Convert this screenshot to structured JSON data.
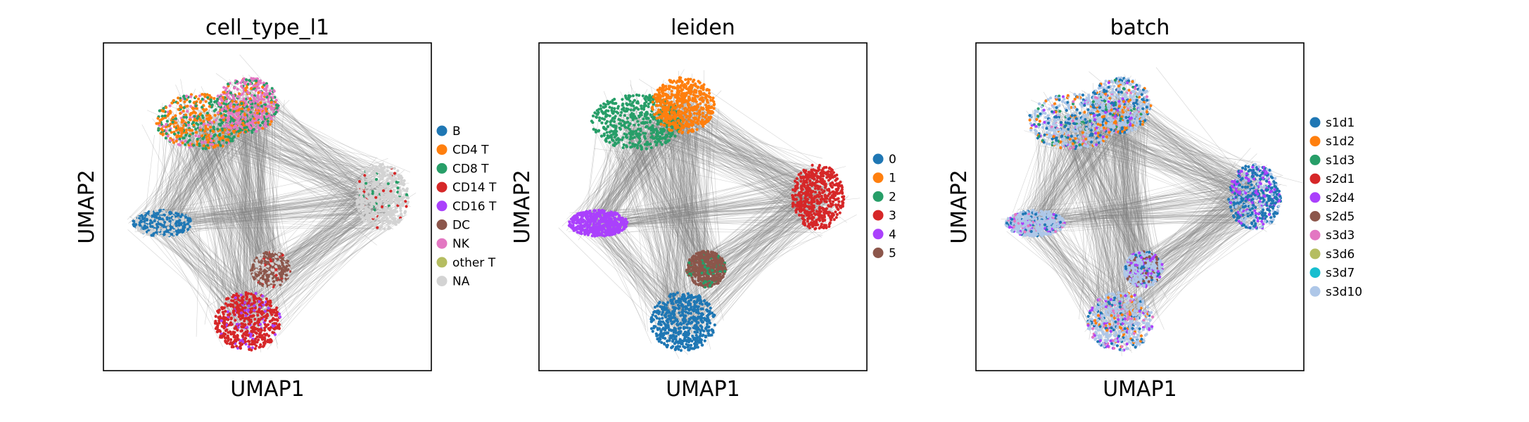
{
  "chart_data": [
    {
      "type": "scatter",
      "title": "cell_type_l1",
      "xlabel": "UMAP1",
      "ylabel": "UMAP2",
      "legend_position": "right",
      "categories": [
        "B",
        "CD4 T",
        "CD8 T",
        "CD14 T",
        "CD16 T",
        "DC",
        "NK",
        "other T",
        "NA"
      ],
      "colors": [
        "#1f77b4",
        "#ff7f0e",
        "#279e68",
        "#d62728",
        "#aa40fc",
        "#8c564b",
        "#e377c2",
        "#b5bd61",
        "#d3d3d3"
      ]
    },
    {
      "type": "scatter",
      "title": "leiden",
      "xlabel": "UMAP1",
      "ylabel": "UMAP2",
      "legend_position": "right",
      "categories": [
        "0",
        "1",
        "2",
        "3",
        "4",
        "5"
      ],
      "colors": [
        "#1f77b4",
        "#ff7f0e",
        "#279e68",
        "#d62728",
        "#aa40fc",
        "#8c564b"
      ]
    },
    {
      "type": "scatter",
      "title": "batch",
      "xlabel": "UMAP1",
      "ylabel": "UMAP2",
      "legend_position": "right",
      "categories": [
        "s1d1",
        "s1d2",
        "s1d3",
        "s2d1",
        "s2d4",
        "s2d5",
        "s3d3",
        "s3d6",
        "s3d7",
        "s3d10"
      ],
      "colors": [
        "#1f77b4",
        "#ff7f0e",
        "#279e68",
        "#d62728",
        "#aa40fc",
        "#8c564b",
        "#e377c2",
        "#b5bd61",
        "#17becf",
        "#aec7e8"
      ]
    }
  ]
}
